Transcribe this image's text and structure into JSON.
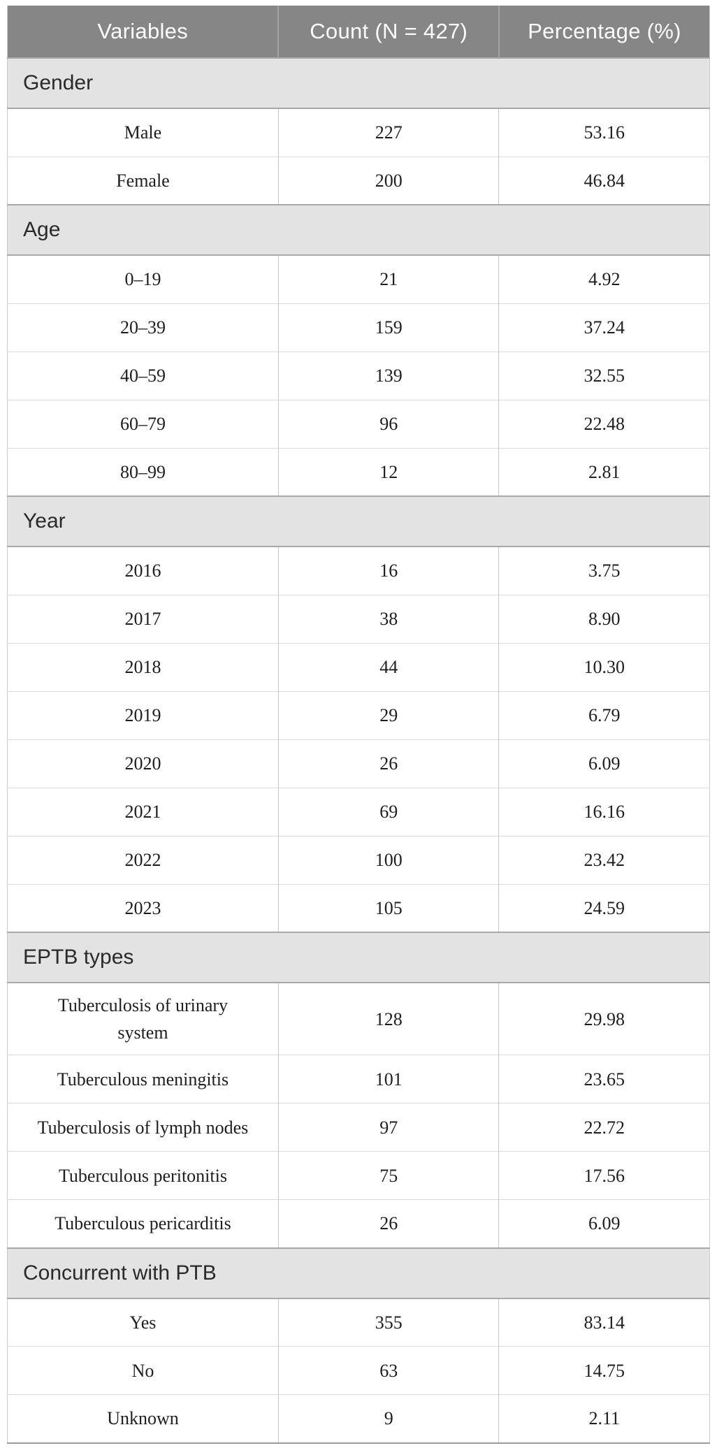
{
  "table": {
    "columns": [
      "Variables",
      "Count (N = 427)",
      "Percentage (%)"
    ],
    "sections": [
      {
        "label": "Gender",
        "rows": [
          [
            "Male",
            "227",
            "53.16"
          ],
          [
            "Female",
            "200",
            "46.84"
          ]
        ]
      },
      {
        "label": "Age",
        "rows": [
          [
            "0–19",
            "21",
            "4.92"
          ],
          [
            "20–39",
            "159",
            "37.24"
          ],
          [
            "40–59",
            "139",
            "32.55"
          ],
          [
            "60–79",
            "96",
            "22.48"
          ],
          [
            "80–99",
            "12",
            "2.81"
          ]
        ]
      },
      {
        "label": "Year",
        "rows": [
          [
            "2016",
            "16",
            "3.75"
          ],
          [
            "2017",
            "38",
            "8.90"
          ],
          [
            "2018",
            "44",
            "10.30"
          ],
          [
            "2019",
            "29",
            "6.79"
          ],
          [
            "2020",
            "26",
            "6.09"
          ],
          [
            "2021",
            "69",
            "16.16"
          ],
          [
            "2022",
            "100",
            "23.42"
          ],
          [
            "2023",
            "105",
            "24.59"
          ]
        ]
      },
      {
        "label": "EPTB types",
        "rows": [
          [
            "Tuberculosis of urinary\nsystem",
            "128",
            "29.98"
          ],
          [
            "Tuberculous meningitis",
            "101",
            "23.65"
          ],
          [
            "Tuberculosis of lymph nodes",
            "97",
            "22.72"
          ],
          [
            "Tuberculous peritonitis",
            "75",
            "17.56"
          ],
          [
            "Tuberculous pericarditis",
            "26",
            "6.09"
          ]
        ]
      },
      {
        "label": "Concurrent with PTB",
        "rows": [
          [
            "Yes",
            "355",
            "83.14"
          ],
          [
            "No",
            "63",
            "14.75"
          ],
          [
            "Unknown",
            "9",
            "2.11"
          ]
        ]
      }
    ],
    "colors": {
      "header_bg": "#868686",
      "header_text": "#fcfcfc",
      "header_divider": "#a3a3a3",
      "section_bg": "#e3e3e3",
      "section_text": "#2a2a2a",
      "section_divider": "#a9a9a9",
      "cell_text": "#1e1e1e",
      "row_divider": "#dcdcdc",
      "col_divider": "#c8c8c8",
      "side_border": "#cccccc",
      "bottom_border": "#9b9b9b"
    }
  }
}
